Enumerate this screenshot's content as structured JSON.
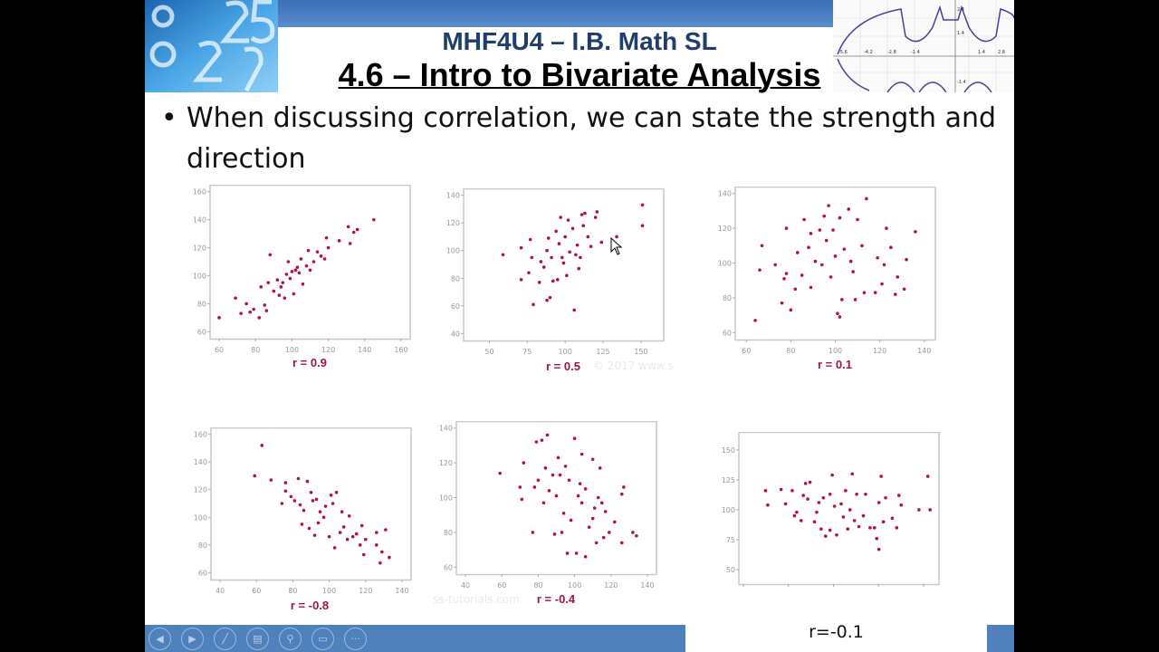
{
  "header": {
    "subtitle": "MHF4U4 – I.B. Math SL",
    "title": "4.6 – Intro to Bivariate Analysis"
  },
  "bullet": {
    "text": "When discussing correlation, we can state the strength and direction"
  },
  "watermarks": [
    "© 2017 www.s",
    "ss-tutorials.com"
  ],
  "caption": "r=-0.1",
  "colors": {
    "point": "#b5103f",
    "label": "#a3153e",
    "bar": "#4f81bd"
  },
  "toolbar": {
    "buttons": [
      "previous-icon",
      "next-icon",
      "pen-icon",
      "slides-grid-icon",
      "zoom-icon",
      "subtitles-icon",
      "more-icon"
    ]
  },
  "batman_graph": {
    "x_ticks": [
      "-5.6",
      "-4.2",
      "-2.8",
      "-1.4",
      "1.4",
      "2.8"
    ],
    "y_ticks": [
      "2.4",
      "1.4",
      "-1.4"
    ]
  },
  "chart_data": [
    {
      "type": "scatter",
      "label": "r = 0.9",
      "xlim": [
        55,
        165
      ],
      "ylim": [
        55,
        165
      ],
      "xticks": [
        60,
        80,
        100,
        120,
        140,
        160
      ],
      "yticks": [
        60,
        80,
        100,
        120,
        140,
        160
      ],
      "points": [
        [
          60,
          70
        ],
        [
          69,
          84
        ],
        [
          72,
          73
        ],
        [
          75,
          80
        ],
        [
          77,
          74
        ],
        [
          79,
          76
        ],
        [
          82,
          70
        ],
        [
          83,
          92
        ],
        [
          85,
          79
        ],
        [
          86,
          75
        ],
        [
          87,
          95
        ],
        [
          88,
          115
        ],
        [
          90,
          89
        ],
        [
          92,
          97
        ],
        [
          93,
          86
        ],
        [
          94,
          92
        ],
        [
          95,
          95
        ],
        [
          96,
          84
        ],
        [
          97,
          101
        ],
        [
          98,
          110
        ],
        [
          99,
          98
        ],
        [
          100,
          103
        ],
        [
          101,
          87
        ],
        [
          102,
          104
        ],
        [
          103,
          106
        ],
        [
          104,
          102
        ],
        [
          105,
          112
        ],
        [
          106,
          94
        ],
        [
          108,
          107
        ],
        [
          109,
          118
        ],
        [
          110,
          104
        ],
        [
          112,
          110
        ],
        [
          114,
          117
        ],
        [
          116,
          114
        ],
        [
          118,
          112
        ],
        [
          119,
          127
        ],
        [
          120,
          120
        ],
        [
          126,
          125
        ],
        [
          131,
          135
        ],
        [
          132,
          123
        ],
        [
          134,
          131
        ],
        [
          136,
          133
        ],
        [
          145,
          140
        ]
      ]
    },
    {
      "type": "scatter",
      "label": "r = 0.5",
      "xlim": [
        33,
        165
      ],
      "ylim": [
        35,
        145
      ],
      "xticks": [
        50,
        75,
        100,
        125,
        150
      ],
      "yticks": [
        40,
        60,
        80,
        100,
        120,
        140
      ],
      "points": [
        [
          59,
          97
        ],
        [
          71,
          102
        ],
        [
          71,
          79
        ],
        [
          76,
          84
        ],
        [
          77,
          108
        ],
        [
          78,
          95
        ],
        [
          79,
          61
        ],
        [
          83,
          77
        ],
        [
          84,
          92
        ],
        [
          86,
          88
        ],
        [
          88,
          100
        ],
        [
          88,
          64
        ],
        [
          89,
          109
        ],
        [
          90,
          66
        ],
        [
          91,
          95
        ],
        [
          92,
          78
        ],
        [
          94,
          114
        ],
        [
          95,
          79
        ],
        [
          96,
          105
        ],
        [
          97,
          124
        ],
        [
          98,
          95
        ],
        [
          99,
          91
        ],
        [
          100,
          110
        ],
        [
          101,
          82
        ],
        [
          102,
          122
        ],
        [
          103,
          99
        ],
        [
          105,
          116
        ],
        [
          106,
          57
        ],
        [
          107,
          97
        ],
        [
          108,
          104
        ],
        [
          109,
          87
        ],
        [
          110,
          95
        ],
        [
          111,
          126
        ],
        [
          112,
          118
        ],
        [
          113,
          127
        ],
        [
          115,
          110
        ],
        [
          117,
          103
        ],
        [
          120,
          124
        ],
        [
          121,
          128
        ],
        [
          124,
          106
        ],
        [
          134,
          110
        ],
        [
          151,
          133
        ],
        [
          151,
          118
        ]
      ]
    },
    {
      "type": "scatter",
      "label": "r = 0.1",
      "xlim": [
        55,
        145
      ],
      "ylim": [
        56,
        144
      ],
      "xticks": [
        60,
        80,
        100,
        120,
        140
      ],
      "yticks": [
        60,
        80,
        100,
        120,
        140
      ],
      "points": [
        [
          64,
          67
        ],
        [
          66,
          96
        ],
        [
          67,
          110
        ],
        [
          73,
          99
        ],
        [
          76,
          77
        ],
        [
          77,
          91
        ],
        [
          78,
          94
        ],
        [
          78,
          120
        ],
        [
          80,
          73
        ],
        [
          82,
          85
        ],
        [
          83,
          106
        ],
        [
          85,
          93
        ],
        [
          86,
          125
        ],
        [
          88,
          109
        ],
        [
          89,
          86
        ],
        [
          89,
          117
        ],
        [
          91,
          101
        ],
        [
          93,
          119
        ],
        [
          94,
          99
        ],
        [
          95,
          127
        ],
        [
          96,
          113
        ],
        [
          97,
          133
        ],
        [
          98,
          92
        ],
        [
          99,
          119
        ],
        [
          100,
          104
        ],
        [
          101,
          71
        ],
        [
          102,
          69
        ],
        [
          102,
          126
        ],
        [
          103,
          79
        ],
        [
          104,
          108
        ],
        [
          106,
          131
        ],
        [
          107,
          101
        ],
        [
          108,
          95
        ],
        [
          109,
          79
        ],
        [
          110,
          125
        ],
        [
          112,
          110
        ],
        [
          113,
          83
        ],
        [
          114,
          137
        ],
        [
          118,
          83
        ],
        [
          119,
          103
        ],
        [
          121,
          88
        ],
        [
          122,
          99
        ],
        [
          123,
          120
        ],
        [
          125,
          109
        ],
        [
          127,
          82
        ],
        [
          128,
          92
        ],
        [
          131,
          85
        ],
        [
          132,
          102
        ],
        [
          136,
          118
        ]
      ]
    },
    {
      "type": "scatter",
      "label": "r = -0.8",
      "xlim": [
        35,
        145
      ],
      "ylim": [
        55,
        165
      ],
      "xticks": [
        40,
        60,
        80,
        100,
        120,
        140
      ],
      "yticks": [
        60,
        80,
        100,
        120,
        140,
        160
      ],
      "points": [
        [
          59,
          130
        ],
        [
          63,
          152
        ],
        [
          68,
          127
        ],
        [
          74,
          110
        ],
        [
          76,
          125
        ],
        [
          76,
          119
        ],
        [
          79,
          115
        ],
        [
          81,
          112
        ],
        [
          83,
          128
        ],
        [
          84,
          109
        ],
        [
          85,
          95
        ],
        [
          86,
          105
        ],
        [
          88,
          126
        ],
        [
          89,
          92
        ],
        [
          90,
          118
        ],
        [
          91,
          112
        ],
        [
          92,
          87
        ],
        [
          93,
          113
        ],
        [
          94,
          96
        ],
        [
          95,
          104
        ],
        [
          97,
          100
        ],
        [
          98,
          108
        ],
        [
          100,
          86
        ],
        [
          101,
          116
        ],
        [
          102,
          110
        ],
        [
          103,
          78
        ],
        [
          104,
          118
        ],
        [
          106,
          89
        ],
        [
          107,
          104
        ],
        [
          108,
          93
        ],
        [
          110,
          84
        ],
        [
          111,
          101
        ],
        [
          113,
          86
        ],
        [
          115,
          88
        ],
        [
          117,
          80
        ],
        [
          118,
          94
        ],
        [
          119,
          73
        ],
        [
          120,
          84
        ],
        [
          126,
          89
        ],
        [
          126,
          80
        ],
        [
          128,
          67
        ],
        [
          129,
          75
        ],
        [
          131,
          91
        ],
        [
          133,
          71
        ]
      ]
    },
    {
      "type": "scatter",
      "label": "r = -0.4",
      "xlim": [
        35,
        145
      ],
      "ylim": [
        56,
        144
      ],
      "xticks": [
        40,
        60,
        80,
        100,
        120,
        140
      ],
      "yticks": [
        60,
        80,
        100,
        120,
        140
      ],
      "points": [
        [
          59,
          114
        ],
        [
          70,
          106
        ],
        [
          71,
          99
        ],
        [
          72,
          120
        ],
        [
          77,
          80
        ],
        [
          78,
          106
        ],
        [
          79,
          132
        ],
        [
          80,
          110
        ],
        [
          82,
          133
        ],
        [
          83,
          97
        ],
        [
          84,
          117
        ],
        [
          85,
          136
        ],
        [
          86,
          104
        ],
        [
          88,
          113
        ],
        [
          89,
          79
        ],
        [
          90,
          101
        ],
        [
          91,
          123
        ],
        [
          92,
          113
        ],
        [
          93,
          80
        ],
        [
          94,
          91
        ],
        [
          95,
          118
        ],
        [
          96,
          68
        ],
        [
          97,
          110
        ],
        [
          98,
          87
        ],
        [
          100,
          134
        ],
        [
          101,
          68
        ],
        [
          102,
          101
        ],
        [
          103,
          108
        ],
        [
          104,
          97
        ],
        [
          104,
          125
        ],
        [
          106,
          66
        ],
        [
          106,
          105
        ],
        [
          108,
          83
        ],
        [
          110,
          88
        ],
        [
          110,
          122
        ],
        [
          111,
          94
        ],
        [
          112,
          74
        ],
        [
          113,
          100
        ],
        [
          114,
          117
        ],
        [
          115,
          97
        ],
        [
          116,
          77
        ],
        [
          117,
          92
        ],
        [
          119,
          80
        ],
        [
          122,
          86
        ],
        [
          126,
          74
        ],
        [
          126,
          102
        ],
        [
          127,
          106
        ],
        [
          132,
          80
        ],
        [
          134,
          78
        ]
      ]
    },
    {
      "type": "scatter",
      "label": "",
      "xlim": [
        55,
        145
      ],
      "ylim": [
        38,
        165
      ],
      "xticks": [],
      "yticks": [
        50,
        75,
        100,
        125,
        150
      ],
      "points": [
        [
          67,
          116
        ],
        [
          68,
          104
        ],
        [
          74,
          117
        ],
        [
          76,
          105
        ],
        [
          79,
          116
        ],
        [
          80,
          95
        ],
        [
          81,
          98
        ],
        [
          83,
          91
        ],
        [
          84,
          112
        ],
        [
          85,
          122
        ],
        [
          86,
          109
        ],
        [
          87,
          123
        ],
        [
          89,
          90
        ],
        [
          90,
          98
        ],
        [
          91,
          106
        ],
        [
          92,
          84
        ],
        [
          93,
          110
        ],
        [
          94,
          78
        ],
        [
          96,
          83
        ],
        [
          96,
          113
        ],
        [
          97,
          129
        ],
        [
          98,
          103
        ],
        [
          99,
          79
        ],
        [
          101,
          105
        ],
        [
          102,
          94
        ],
        [
          103,
          116
        ],
        [
          104,
          84
        ],
        [
          105,
          100
        ],
        [
          106,
          130
        ],
        [
          107,
          91
        ],
        [
          108,
          113
        ],
        [
          109,
          86
        ],
        [
          111,
          95
        ],
        [
          112,
          113
        ],
        [
          114,
          85
        ],
        [
          116,
          85
        ],
        [
          117,
          76
        ],
        [
          118,
          106
        ],
        [
          118,
          67
        ],
        [
          119,
          128
        ],
        [
          120,
          90
        ],
        [
          121,
          110
        ],
        [
          124,
          93
        ],
        [
          126,
          85
        ],
        [
          127,
          112
        ],
        [
          128,
          104
        ],
        [
          136,
          100
        ],
        [
          140,
          128
        ],
        [
          141,
          100
        ]
      ]
    }
  ]
}
